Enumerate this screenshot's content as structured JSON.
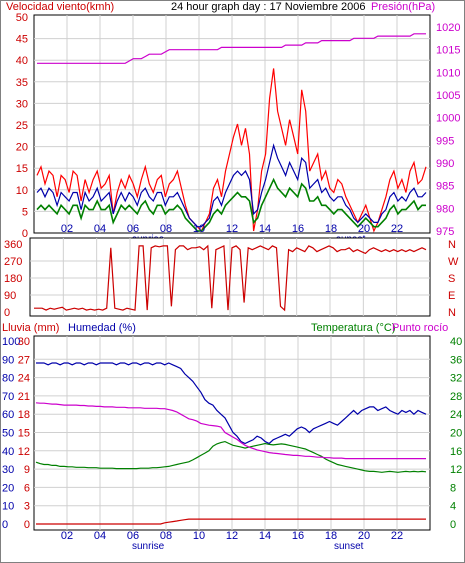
{
  "chart_data": [
    {
      "type": "line",
      "title": "24 hour graph day : 17 Noviembre 2006",
      "left_axis_label": "Velocidad viento(kmh)",
      "right_axis_label": "Presión(hPa)",
      "left_ylim": [
        0,
        50
      ],
      "left_ticks": [
        "0",
        "5",
        "10",
        "15",
        "20",
        "25",
        "30",
        "35",
        "40",
        "45",
        "50"
      ],
      "right_ylim": [
        975,
        1020
      ],
      "right_ticks": [
        "975",
        "980",
        "985",
        "990",
        "995",
        "1000",
        "1005",
        "1010",
        "1015",
        "1020"
      ],
      "x_ticks": [
        "02",
        "04",
        "06",
        "08",
        "10",
        "12",
        "14",
        "16",
        "18",
        "20",
        "22"
      ],
      "markers": [
        "sunrise",
        "sunset"
      ],
      "grid": true,
      "colors": {
        "gust": "#ff0000",
        "avg": "#0000aa",
        "green": "#008000",
        "pressure": "#cc00cc",
        "left_axis": "#cc0000",
        "right_axis": "#cc00cc"
      },
      "series": [
        {
          "key": "gust",
          "values": [
            13,
            15,
            11,
            14,
            13,
            8,
            13,
            12,
            9,
            14,
            13,
            7,
            12,
            9,
            12,
            14,
            10,
            11,
            13,
            4,
            9,
            12,
            10,
            13,
            11,
            8,
            12,
            15,
            11,
            9,
            12,
            13,
            8,
            11,
            12,
            14,
            10,
            6,
            3,
            2,
            1,
            0,
            2,
            4,
            10,
            12,
            8,
            14,
            18,
            22,
            25,
            20,
            24,
            18,
            0,
            5,
            14,
            18,
            31,
            38,
            28,
            24,
            20,
            26,
            22,
            18,
            33,
            28,
            14,
            16,
            18,
            12,
            14,
            10,
            9,
            12,
            11,
            8,
            6,
            4,
            2,
            4,
            6,
            3,
            0,
            2,
            5,
            8,
            12,
            14,
            10,
            12,
            9,
            14,
            16,
            11,
            12,
            15
          ]
        },
        {
          "key": "avg",
          "values": [
            9,
            10,
            8,
            10,
            9,
            6,
            9,
            8,
            7,
            9,
            9,
            5,
            9,
            7,
            8,
            10,
            7,
            8,
            9,
            4,
            7,
            9,
            7,
            9,
            8,
            6,
            9,
            10,
            8,
            7,
            9,
            9,
            6,
            8,
            8,
            9,
            7,
            5,
            3,
            2,
            1,
            1,
            2,
            3,
            7,
            8,
            6,
            9,
            11,
            13,
            14,
            13,
            14,
            12,
            4,
            5,
            9,
            12,
            16,
            20,
            17,
            15,
            13,
            16,
            14,
            12,
            17,
            16,
            10,
            11,
            12,
            9,
            10,
            8,
            7,
            8,
            8,
            6,
            5,
            3,
            2,
            3,
            4,
            3,
            2,
            2,
            4,
            5,
            8,
            9,
            7,
            8,
            7,
            9,
            10,
            8,
            8,
            9
          ]
        },
        {
          "key": "green",
          "values": [
            5,
            6,
            5,
            6,
            5,
            4,
            6,
            5,
            4,
            6,
            6,
            3,
            6,
            5,
            5,
            7,
            5,
            5,
            6,
            2,
            4,
            6,
            5,
            6,
            5,
            4,
            6,
            7,
            5,
            4,
            6,
            6,
            4,
            5,
            5,
            6,
            5,
            3,
            2,
            1,
            0,
            0,
            1,
            2,
            4,
            5,
            4,
            6,
            7,
            8,
            9,
            8,
            8,
            7,
            2,
            3,
            6,
            8,
            10,
            12,
            10,
            9,
            8,
            10,
            9,
            8,
            11,
            10,
            7,
            7,
            8,
            6,
            6,
            5,
            4,
            5,
            5,
            4,
            3,
            2,
            1,
            2,
            3,
            2,
            1,
            1,
            2,
            3,
            5,
            6,
            4,
            5,
            5,
            6,
            7,
            5,
            6,
            6
          ]
        },
        {
          "key": "pressure",
          "values": [
            1012,
            1012,
            1012,
            1012,
            1012,
            1012,
            1012,
            1012,
            1012,
            1012,
            1012,
            1012,
            1012,
            1012,
            1012,
            1012,
            1012,
            1012,
            1012,
            1012,
            1012,
            1012,
            1012,
            1012.5,
            1013,
            1013,
            1013,
            1013.5,
            1014,
            1014,
            1014,
            1014,
            1014.5,
            1015,
            1015,
            1015,
            1015,
            1015,
            1015,
            1015,
            1015,
            1015,
            1015,
            1015,
            1015,
            1015,
            1015.5,
            1015.5,
            1015.5,
            1015.5,
            1015.5,
            1015.5,
            1015.5,
            1015.5,
            1015.5,
            1015.5,
            1015.5,
            1015.5,
            1015.5,
            1015.5,
            1015.5,
            1015.5,
            1016,
            1016,
            1016,
            1016,
            1016,
            1016.5,
            1016.5,
            1016.5,
            1016.5,
            1017,
            1017,
            1017,
            1017,
            1017,
            1017,
            1017,
            1017,
            1017.5,
            1017.5,
            1017.5,
            1017.5,
            1017.5,
            1017.5,
            1018,
            1018,
            1018,
            1018,
            1018,
            1018,
            1018,
            1018,
            1018,
            1018.5,
            1018.5,
            1018.5,
            1018.5
          ]
        }
      ]
    },
    {
      "type": "line",
      "left_ticks": [
        "360",
        "270",
        "180",
        "90",
        "0"
      ],
      "right_ticks": [
        "N",
        "W",
        "S",
        "E",
        "N"
      ],
      "ylim": [
        0,
        360
      ],
      "x_ticks": [
        "02",
        "04",
        "06",
        "08",
        "10",
        "12",
        "14",
        "16",
        "18",
        "20",
        "22"
      ],
      "color": "#cc0000",
      "series": [
        {
          "key": "direction",
          "values": [
            20,
            20,
            20,
            10,
            20,
            15,
            20,
            25,
            10,
            15,
            20,
            15,
            20,
            10,
            15,
            10,
            15,
            10,
            20,
            340,
            20,
            15,
            10,
            20,
            15,
            10,
            350,
            350,
            10,
            340,
            350,
            345,
            350,
            350,
            30,
            330,
            350,
            350,
            330,
            340,
            340,
            345,
            330,
            350,
            20,
            330,
            340,
            350,
            10,
            340,
            350,
            330,
            50,
            340,
            330,
            340,
            350,
            340,
            330,
            350,
            340,
            30,
            10,
            330,
            320,
            340,
            330,
            320,
            350,
            340,
            320,
            330,
            340,
            350,
            340,
            320,
            330,
            330,
            340,
            320,
            330,
            320,
            310,
            330,
            340,
            330,
            320,
            330,
            320,
            330,
            320,
            330,
            320,
            330,
            320,
            330,
            340,
            330
          ]
        }
      ]
    },
    {
      "type": "line",
      "left_axis_label_1": "Lluvia (mm)",
      "left_axis_label_2": "Humedad (%)",
      "right_axis_label_1": "Temperatura (°C)",
      "right_axis_label_2": "Punto rocío",
      "rain_ticks": [
        "0",
        "3",
        "6",
        "9",
        "12",
        "15",
        "18",
        "21",
        "24",
        "27",
        "30"
      ],
      "humidity_ticks": [
        "0",
        "10",
        "20",
        "30",
        "40",
        "50",
        "60",
        "70",
        "80",
        "90",
        "100"
      ],
      "temperature_ticks": [
        "0",
        "4",
        "8",
        "12",
        "16",
        "20",
        "24",
        "28",
        "32",
        "36",
        "40"
      ],
      "x_ticks": [
        "02",
        "04",
        "06",
        "08",
        "10",
        "12",
        "14",
        "16",
        "18",
        "20",
        "22"
      ],
      "markers": [
        "sunrise",
        "sunset"
      ],
      "colors": {
        "rain": "#cc0000",
        "humidity": "#0000aa",
        "temperature": "#008000",
        "dewpoint": "#cc00cc",
        "rain_axis": "#cc0000",
        "humidity_axis": "#0000aa",
        "temperature_axis": "#008000",
        "dewpoint_label": "#cc00cc"
      },
      "series": [
        {
          "key": "humidity",
          "values": [
            88,
            88,
            88,
            87,
            88,
            88,
            87,
            88,
            88,
            87,
            88,
            88,
            87,
            88,
            88,
            87,
            88,
            88,
            88,
            88,
            87,
            88,
            88,
            87,
            88,
            88,
            87,
            88,
            88,
            87,
            88,
            88,
            87,
            88,
            87,
            86,
            85,
            82,
            80,
            78,
            75,
            72,
            68,
            66,
            65,
            62,
            60,
            58,
            54,
            50,
            48,
            45,
            44,
            45,
            46,
            48,
            47,
            45,
            44,
            46,
            47,
            48,
            49,
            48,
            50,
            52,
            53,
            52,
            50,
            52,
            53,
            54,
            55,
            56,
            55,
            54,
            56,
            58,
            60,
            62,
            60,
            62,
            63,
            64,
            64,
            62,
            63,
            64,
            62,
            61,
            60,
            62,
            61,
            62,
            60,
            62,
            61,
            60
          ]
        },
        {
          "key": "temperature",
          "values": [
            13.5,
            13.2,
            13,
            13,
            12.8,
            12.8,
            12.6,
            12.6,
            12.5,
            12.5,
            12.4,
            12.4,
            12.4,
            12.3,
            12.3,
            12.3,
            12.2,
            12.2,
            12.2,
            12.2,
            12.1,
            12.1,
            12.1,
            12.1,
            12.1,
            12.1,
            12.2,
            12.2,
            12.2,
            12.3,
            12.3,
            12.4,
            12.5,
            12.6,
            12.8,
            13,
            13.2,
            13.4,
            13.6,
            14,
            14.5,
            15,
            15.5,
            16,
            17,
            17.5,
            17.8,
            18,
            17.6,
            17.2,
            17,
            16.8,
            16.6,
            16.8,
            17,
            17.2,
            17.4,
            17.6,
            17.4,
            17.3,
            17.4,
            17.5,
            17.4,
            17.2,
            17,
            16.8,
            16.6,
            16.4,
            16,
            15.6,
            15.2,
            14.8,
            14.2,
            13.8,
            13.4,
            13,
            12.8,
            12.6,
            12.4,
            12.2,
            12,
            11.8,
            11.6,
            11.5,
            11.5,
            11.4,
            11.3,
            11.4,
            11.5,
            11.4,
            11.3,
            11.4,
            11.5,
            11.4,
            11.5,
            11.4,
            11.5,
            11.4
          ]
        },
        {
          "key": "dewpoint",
          "values": [
            26.5,
            26.4,
            26.4,
            26.3,
            26.2,
            26.2,
            26.1,
            26,
            26,
            26,
            26,
            25.9,
            25.9,
            25.8,
            25.8,
            25.7,
            25.7,
            25.6,
            25.6,
            25.6,
            25.5,
            25.5,
            25.5,
            25.4,
            25.4,
            25.4,
            25.4,
            25.3,
            25.3,
            25.3,
            25.3,
            25.2,
            25.2,
            25,
            24.8,
            24.5,
            24,
            23.5,
            23,
            22.8,
            22.5,
            22,
            21.8,
            21.6,
            21.5,
            21.4,
            21.2,
            20,
            19.5,
            19,
            18.5,
            17.8,
            17.2,
            16.8,
            16.5,
            16.2,
            16,
            15.8,
            15.6,
            15.5,
            15.4,
            15.3,
            15.2,
            15.1,
            15,
            15,
            14.9,
            14.8,
            14.8,
            14.7,
            14.6,
            14.6,
            14.5,
            14.5,
            14.4,
            14.4,
            14.4,
            14.3,
            14.3,
            14.3,
            14.3,
            14.3,
            14.3,
            14.3,
            14.3,
            14.3,
            14.3,
            14.3,
            14.3,
            14.3,
            14.3,
            14.3,
            14.3,
            14.3,
            14.3,
            14.3,
            14.3,
            14.3
          ]
        },
        {
          "key": "rain",
          "values": [
            0,
            0,
            0,
            0,
            0,
            0,
            0,
            0,
            0,
            0,
            0,
            0,
            0,
            0,
            0,
            0,
            0,
            0,
            0,
            0,
            0,
            0,
            0,
            0,
            0,
            0,
            0,
            0,
            0,
            0,
            0,
            0,
            0.2,
            0.3,
            0.4,
            0.5,
            0.6,
            0.7,
            0.8,
            0.8,
            0.8,
            0.8,
            0.8,
            0.8,
            0.8,
            0.8,
            0.8,
            0.8,
            0.8,
            0.8,
            0.8,
            0.8,
            0.8,
            0.8,
            0.8,
            0.8,
            0.8,
            0.8,
            0.8,
            0.8,
            0.8,
            0.8,
            0.8,
            0.8,
            0.8,
            0.8,
            0.8,
            0.8,
            0.8,
            0.8,
            0.8,
            0.8,
            0.8,
            0.8,
            0.8,
            0.8,
            0.8,
            0.8,
            0.8,
            0.8,
            0.8,
            0.8,
            0.8,
            0.8,
            0.8,
            0.8,
            0.8,
            0.8,
            0.8,
            0.8,
            0.8,
            0.8,
            0.8,
            0.8,
            0.8,
            0.8,
            0.8,
            0.8
          ]
        }
      ]
    }
  ]
}
